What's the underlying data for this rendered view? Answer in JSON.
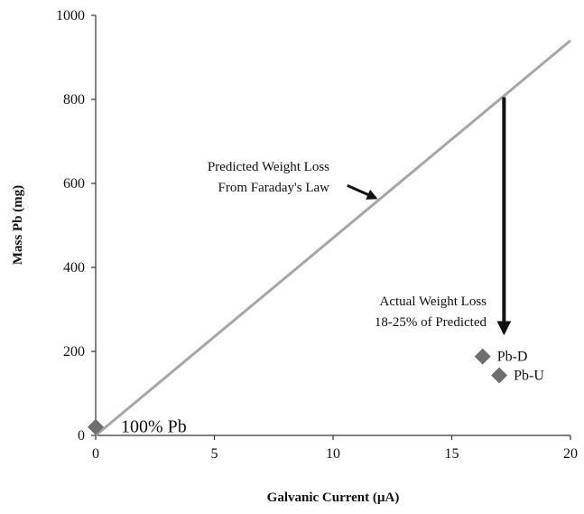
{
  "chart_data": {
    "type": "scatter",
    "xlabel": "Galvanic Current (µA)",
    "ylabel": "Mass Pb (mg)",
    "xlim": [
      0,
      20
    ],
    "ylim": [
      0,
      1000
    ],
    "xticks": [
      "0",
      "5",
      "10",
      "15",
      "20"
    ],
    "yticks": [
      "0",
      "200",
      "400",
      "600",
      "800",
      "1000"
    ],
    "grid": false,
    "line": {
      "x": [
        0,
        20
      ],
      "y": [
        0,
        940
      ],
      "color": "#a6a6a6"
    },
    "points": [
      {
        "label": "100% Pb",
        "x": 0,
        "y": 20
      },
      {
        "label": "Pb-D",
        "x": 16.3,
        "y": 188
      },
      {
        "label": "Pb-U",
        "x": 17.0,
        "y": 143
      }
    ],
    "marker_color": "#6e6e6e",
    "annotations": {
      "faraday": [
        "Predicted Weight Loss",
        "From Faraday's Law"
      ],
      "actual": [
        "Actual Weight Loss",
        "18-25% of Predicted"
      ]
    },
    "vertical_arrow": {
      "x": 17.2,
      "y_start": 805,
      "y_end": 245
    },
    "diagonal_arrow": {
      "from": [
        10.6,
        595
      ],
      "to": [
        11.8,
        565
      ]
    }
  }
}
